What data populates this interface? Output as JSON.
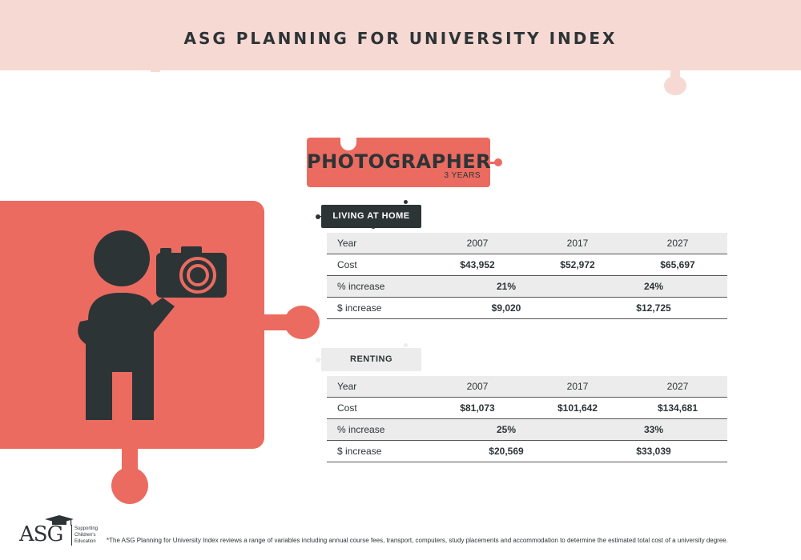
{
  "header": {
    "title": "ASG PLANNING FOR UNIVERSITY INDEX"
  },
  "profession": {
    "title": "PHOTOGRAPHER",
    "duration": "3 YEARS"
  },
  "sections": [
    {
      "tag": "LIVING AT HOME",
      "table": {
        "year_label": "Year",
        "years": [
          "2007",
          "2017",
          "2027"
        ],
        "cost_label": "Cost",
        "costs": [
          "$43,952",
          "$52,972",
          "$65,697"
        ],
        "pct_label": "% increase",
        "pct": [
          "21%",
          "24%"
        ],
        "dollar_label": "$ increase",
        "dollar": [
          "$9,020",
          "$12,725"
        ]
      }
    },
    {
      "tag": "RENTING",
      "table": {
        "year_label": "Year",
        "years": [
          "2007",
          "2017",
          "2027"
        ],
        "cost_label": "Cost",
        "costs": [
          "$81,073",
          "$101,642",
          "$134,681"
        ],
        "pct_label": "% increase",
        "pct": [
          "25%",
          "33%"
        ],
        "dollar_label": "$ increase",
        "dollar": [
          "$20,569",
          "$33,039"
        ]
      }
    }
  ],
  "logo": {
    "text": "ASG",
    "tagline": "Supporting Children's Education"
  },
  "footnote": "*The ASG Planning for University Index reviews a range of variables including annual course fees, transport, computers, study placements and accommodation to determine the estimated total cost of a university degree.",
  "colors": {
    "accent": "#eb6b60",
    "dark": "#2d3436",
    "light_pink": "#f7d9d4",
    "light_gray": "#ececec"
  },
  "icons": {
    "figure": "person-with-camera-icon",
    "logo": "graduation-cap-icon"
  }
}
